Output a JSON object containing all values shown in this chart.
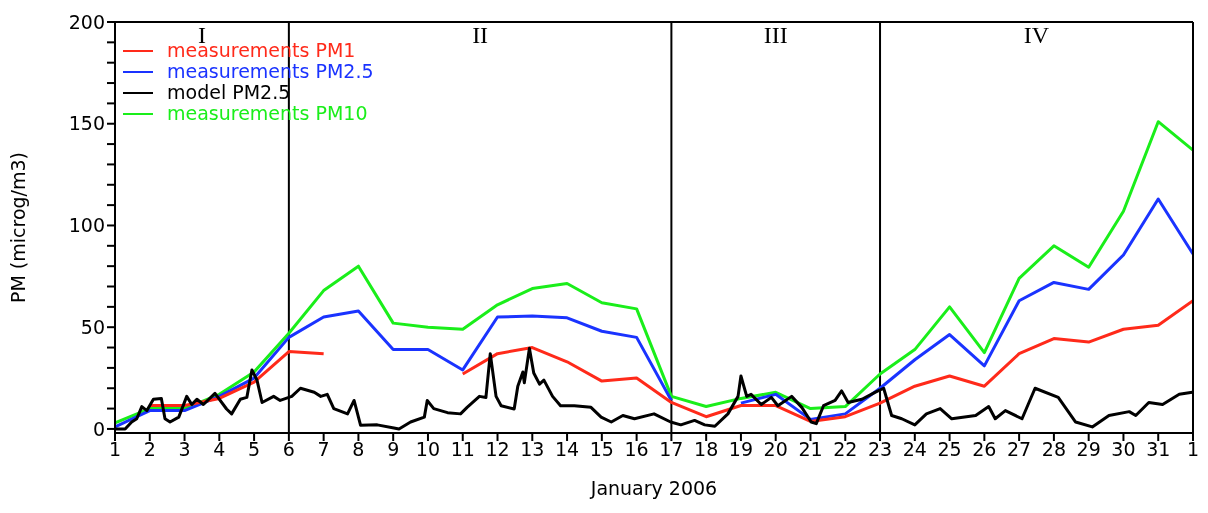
{
  "chart_data": {
    "type": "line",
    "xlabel": "January 2006",
    "ylabel": "PM (microg/m3)",
    "x": [
      "2006-01-01",
      "2006-01-02",
      "2006-01-03",
      "2006-01-04",
      "2006-01-05",
      "2006-01-06",
      "2006-01-07",
      "2006-01-08",
      "2006-01-09",
      "2006-01-10",
      "2006-01-11",
      "2006-01-12",
      "2006-01-13",
      "2006-01-14",
      "2006-01-15",
      "2006-01-16",
      "2006-01-17",
      "2006-01-18",
      "2006-01-19",
      "2006-01-20",
      "2006-01-21",
      "2006-01-22",
      "2006-01-23",
      "2006-01-24",
      "2006-01-25",
      "2006-01-26",
      "2006-01-27",
      "2006-01-28",
      "2006-01-29",
      "2006-01-30",
      "2006-01-31",
      "2006-02-01"
    ],
    "series": [
      {
        "name": "measurements PM1",
        "color": "#ff2a1a",
        "values": [
          null,
          11.5,
          11.5,
          15,
          23,
          38,
          37,
          null,
          null,
          null,
          27,
          37,
          40,
          33,
          23.5,
          25,
          13,
          6,
          11.5,
          11.5,
          3.7,
          6,
          12.7,
          21,
          26,
          21,
          37,
          44.4,
          42.7,
          49,
          51,
          63
        ]
      },
      {
        "name": "measurements PM2.5",
        "color": "#1a33ff",
        "values": [
          1,
          9,
          9,
          16,
          25,
          45,
          55,
          58,
          39,
          39,
          29,
          55,
          55.5,
          54.6,
          48,
          45,
          14,
          null,
          12.7,
          17,
          4.7,
          7.4,
          20,
          34,
          46.4,
          31,
          63,
          72,
          68.6,
          85.5,
          113,
          86
        ]
      },
      {
        "name": "model PM2.5",
        "color": "#000000",
        "x": [
          "2006-01-01T00:00",
          "2006-01-01T07:00",
          "2006-01-01T11:30",
          "2006-01-01T15:00",
          "2006-01-01T18:30",
          "2006-01-01T22:00",
          "2006-01-02T02:30",
          "2006-01-02T08:00",
          "2006-01-02T10:30",
          "2006-01-02T14:00",
          "2006-01-02T20:00",
          "2006-01-03T01:30",
          "2006-01-03T05:00",
          "2006-01-03T08:30",
          "2006-01-03T13:00",
          "2006-01-03T21:00",
          "2006-01-04T05:00",
          "2006-01-04T08:30",
          "2006-01-04T14:30",
          "2006-01-04T19:00",
          "2006-01-04T22:30",
          "2006-01-05T02:00",
          "2006-01-05T05:30",
          "2006-01-05T13:30",
          "2006-01-05T18:00",
          "2006-01-06T02:00",
          "2006-01-06T08:00",
          "2006-01-06T17:30",
          "2006-01-06T22:00",
          "2006-01-07T02:30",
          "2006-01-07T07:00",
          "2006-01-07T16:30",
          "2006-01-07T21:00",
          "2006-01-08T01:30",
          "2006-01-08T13:00",
          "2006-01-09T00:30",
          "2006-01-09T04:00",
          "2006-01-09T12:00",
          "2006-01-09T21:30",
          "2006-01-09T23:30",
          "2006-01-10T04:00",
          "2006-01-10T13:30",
          "2006-01-10T22:30",
          "2006-01-11T03:00",
          "2006-01-11T11:30",
          "2006-01-11T16:00",
          "2006-01-11T19:00",
          "2006-01-11T23:00",
          "2006-01-12T02:30",
          "2006-01-12T11:30",
          "2006-01-12T14:00",
          "2006-01-12T17:30",
          "2006-01-12T18:30",
          "2006-01-12T22:00",
          "2006-01-13T01:00",
          "2006-01-13T05:00",
          "2006-01-13T08:00",
          "2006-01-13T14:00",
          "2006-01-13T19:30",
          "2006-01-14T05:00",
          "2006-01-14T16:30",
          "2006-01-14T23:30",
          "2006-01-15T06:30",
          "2006-01-15T14:30",
          "2006-01-15T22:30",
          "2006-01-16T12:00",
          "2006-01-16T23:30",
          "2006-01-17T06:30",
          "2006-01-17T16:00",
          "2006-01-17T23:00",
          "2006-01-18T06:00",
          "2006-01-18T15:00",
          "2006-01-18T22:00",
          "2006-01-19T00:00",
          "2006-01-19T04:00",
          "2006-01-19T07:00",
          "2006-01-19T14:00",
          "2006-01-19T21:00",
          "2006-01-20T01:30",
          "2006-01-20T11:00",
          "2006-01-20T18:00",
          "2006-01-21T00:30",
          "2006-01-21T04:00",
          "2006-01-21T09:00",
          "2006-01-21T17:00",
          "2006-01-21T21:30",
          "2006-01-22T02:00",
          "2006-01-22T11:30",
          "2006-01-22T20:30",
          "2006-01-23T02:30",
          "2006-01-23T08:00",
          "2006-01-23T15:00",
          "2006-01-24T00:00",
          "2006-01-24T08:00",
          "2006-01-24T17:30",
          "2006-01-25T01:30",
          "2006-01-25T18:00",
          "2006-01-26T03:00",
          "2006-01-26T07:30",
          "2006-01-26T14:30",
          "2006-01-27T02:00",
          "2006-01-27T11:00",
          "2006-01-28T03:00",
          "2006-01-28T15:00",
          "2006-01-29T02:30",
          "2006-01-29T14:00",
          "2006-01-30T04:00",
          "2006-01-30T08:30",
          "2006-01-30T17:30",
          "2006-01-31T03:00",
          "2006-01-31T14:30",
          "2006-01-31T23:30"
        ],
        "values": [
          0,
          0,
          3.4,
          5,
          11,
          9,
          14.6,
          15,
          5,
          3.4,
          5.8,
          16,
          12,
          14.6,
          12,
          17.5,
          9.8,
          7.4,
          14.6,
          15.5,
          29,
          24,
          13,
          16,
          14,
          16,
          20,
          18,
          16,
          17,
          10,
          7.4,
          14,
          1.8,
          2,
          0.5,
          0,
          3.4,
          5.8,
          14,
          10,
          8,
          7.4,
          10.6,
          16,
          15.5,
          37,
          16,
          11.4,
          9.8,
          21,
          28,
          22.7,
          39.6,
          27.5,
          22,
          24,
          16,
          11.4,
          11.4,
          10.6,
          5.8,
          3.4,
          6.6,
          5,
          7.4,
          3.4,
          2,
          4.2,
          2,
          1.3,
          7.4,
          16,
          26,
          16,
          17,
          12,
          15.5,
          11.4,
          16,
          10.6,
          3.4,
          2.6,
          11.4,
          14,
          18.7,
          13,
          14.6,
          18,
          20,
          6.6,
          5,
          2,
          7.4,
          10,
          5,
          6.6,
          11,
          5,
          9,
          5,
          20,
          15.5,
          3.4,
          1,
          6.6,
          8.5,
          6.6,
          13,
          12,
          17,
          18
        ]
      },
      {
        "name": "measurements PM10",
        "color": "#1aee1a",
        "values": [
          3,
          10,
          10,
          17,
          28,
          47,
          68,
          80,
          52,
          50,
          49,
          61,
          69,
          71.5,
          62,
          59,
          16,
          11,
          15,
          18,
          10,
          11,
          27,
          39,
          60,
          37.5,
          74,
          90,
          79.5,
          107,
          151,
          137
        ]
      }
    ],
    "xlim": [
      "2006-01-01",
      "2006-02-01"
    ],
    "xticks": [
      {
        "value": "2006-01-01",
        "label": "1"
      },
      {
        "value": "2006-01-02",
        "label": "2"
      },
      {
        "value": "2006-01-03",
        "label": "3"
      },
      {
        "value": "2006-01-04",
        "label": "4"
      },
      {
        "value": "2006-01-05",
        "label": "5"
      },
      {
        "value": "2006-01-06",
        "label": "6"
      },
      {
        "value": "2006-01-07",
        "label": "7"
      },
      {
        "value": "2006-01-08",
        "label": "8"
      },
      {
        "value": "2006-01-09",
        "label": "9"
      },
      {
        "value": "2006-01-10",
        "label": "10"
      },
      {
        "value": "2006-01-11",
        "label": "11"
      },
      {
        "value": "2006-01-12",
        "label": "12"
      },
      {
        "value": "2006-01-13",
        "label": "13"
      },
      {
        "value": "2006-01-14",
        "label": "14"
      },
      {
        "value": "2006-01-15",
        "label": "15"
      },
      {
        "value": "2006-01-16",
        "label": "16"
      },
      {
        "value": "2006-01-17",
        "label": "17"
      },
      {
        "value": "2006-01-18",
        "label": "18"
      },
      {
        "value": "2006-01-19",
        "label": "19"
      },
      {
        "value": "2006-01-20",
        "label": "20"
      },
      {
        "value": "2006-01-21",
        "label": "21"
      },
      {
        "value": "2006-01-22",
        "label": "22"
      },
      {
        "value": "2006-01-23",
        "label": "23"
      },
      {
        "value": "2006-01-24",
        "label": "24"
      },
      {
        "value": "2006-01-25",
        "label": "25"
      },
      {
        "value": "2006-01-26",
        "label": "26"
      },
      {
        "value": "2006-01-27",
        "label": "27"
      },
      {
        "value": "2006-01-28",
        "label": "28"
      },
      {
        "value": "2006-01-29",
        "label": "29"
      },
      {
        "value": "2006-01-30",
        "label": "30"
      },
      {
        "value": "2006-01-31",
        "label": "31"
      },
      {
        "value": "2006-02-01",
        "label": "1"
      }
    ],
    "ylim": [
      -2,
      200
    ],
    "yticks": [
      0,
      {
        "value": 10,
        "label": null
      },
      {
        "value": 20,
        "label": null
      },
      {
        "value": 30,
        "label": null
      },
      {
        "value": 40,
        "label": null
      },
      50,
      {
        "value": 60,
        "label": null
      },
      {
        "value": 70,
        "label": null
      },
      {
        "value": 80,
        "label": null
      },
      {
        "value": 90,
        "label": null
      },
      100,
      {
        "value": 110,
        "label": null
      },
      {
        "value": 120,
        "label": null
      },
      {
        "value": 130,
        "label": null
      },
      {
        "value": 140,
        "label": null
      },
      150,
      {
        "value": 160,
        "label": null
      },
      {
        "value": 170,
        "label": null
      },
      {
        "value": 180,
        "label": null
      },
      {
        "value": 190,
        "label": null
      },
      200
    ],
    "ref_lines": [
      {
        "axis": "x",
        "value": "2006-01-06",
        "color": "#000000"
      },
      {
        "axis": "x",
        "value": "2006-01-17",
        "color": "#000000"
      },
      {
        "axis": "x",
        "value": "2006-01-23",
        "color": "#000000"
      }
    ],
    "annotations": [
      "I",
      "II",
      "III",
      "IV"
    ],
    "legend": "top left",
    "grid": false,
    "marker": "none",
    "line_style": "solid"
  }
}
